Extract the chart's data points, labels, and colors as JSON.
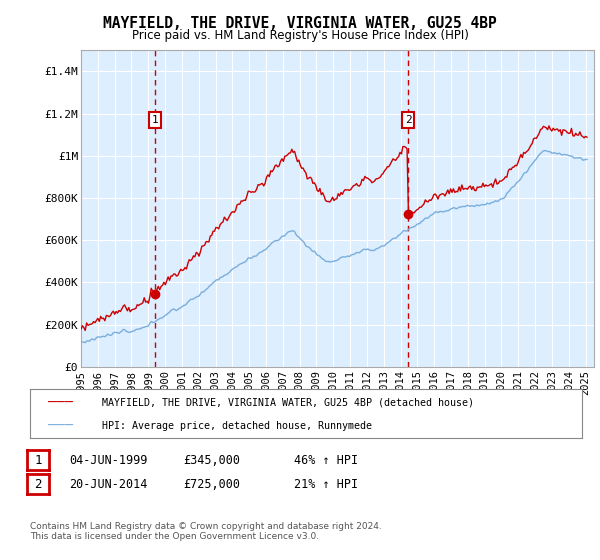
{
  "title": "MAYFIELD, THE DRIVE, VIRGINIA WATER, GU25 4BP",
  "subtitle": "Price paid vs. HM Land Registry's House Price Index (HPI)",
  "legend_line1": "MAYFIELD, THE DRIVE, VIRGINIA WATER, GU25 4BP (detached house)",
  "legend_line2": "HPI: Average price, detached house, Runnymede",
  "annotation1": {
    "label": "1",
    "date": "04-JUN-1999",
    "price": "£345,000",
    "hpi": "46% ↑ HPI"
  },
  "annotation2": {
    "label": "2",
    "date": "20-JUN-2014",
    "price": "£725,000",
    "hpi": "21% ↑ HPI"
  },
  "footer": "Contains HM Land Registry data © Crown copyright and database right 2024.\nThis data is licensed under the Open Government Licence v3.0.",
  "red_color": "#cc0000",
  "blue_color": "#7aaedc",
  "bg_color": "#ddeeff",
  "vline_color": "#cc0000",
  "annotation_box_color": "#cc0000",
  "ylim": [
    0,
    1500000
  ],
  "yticks": [
    0,
    200000,
    400000,
    600000,
    800000,
    1000000,
    1200000,
    1400000
  ],
  "ytick_labels": [
    "£0",
    "£200K",
    "£400K",
    "£600K",
    "£800K",
    "£1M",
    "£1.2M",
    "£1.4M"
  ],
  "purchase1_x": 1999.42,
  "purchase1_y": 345000,
  "purchase2_x": 2014.46,
  "purchase2_y": 725000,
  "xmin": 1995,
  "xmax": 2025.5
}
